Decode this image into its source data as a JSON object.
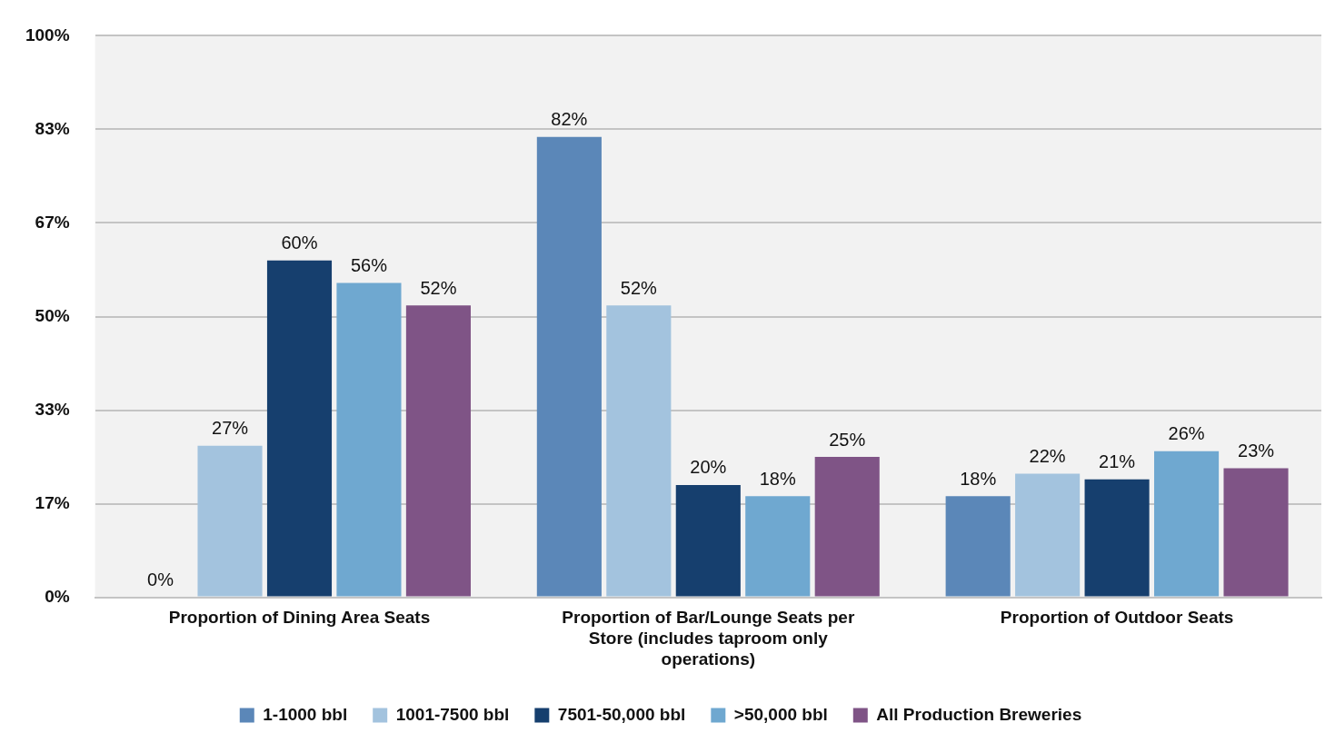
{
  "chart_data": {
    "type": "bar",
    "categories": [
      "Proportion of Dining Area Seats",
      "Proportion of Bar/Lounge Seats per Store (includes taproom only operations)",
      "Proportion of Outdoor Seats"
    ],
    "series": [
      {
        "name": "1-1000 bbl",
        "color": "#5b87b8",
        "values": [
          0,
          82,
          18
        ]
      },
      {
        "name": "1001-7500 bbl",
        "color": "#a3c3de",
        "values": [
          27,
          52,
          22
        ]
      },
      {
        "name": "7501-50,000 bbl",
        "color": "#163f6e",
        "values": [
          60,
          20,
          21
        ]
      },
      {
        "name": ">50,000 bbl",
        "color": "#6fa8d0",
        "values": [
          56,
          18,
          26
        ]
      },
      {
        "name": "All Production Breweries",
        "color": "#7f5486",
        "values": [
          52,
          25,
          23
        ]
      }
    ],
    "ylim": [
      0,
      100
    ],
    "yticks": [
      {
        "value": 0,
        "label": "0%"
      },
      {
        "value": 16.667,
        "label": "17%"
      },
      {
        "value": 33.333,
        "label": "33%"
      },
      {
        "value": 50,
        "label": "50%"
      },
      {
        "value": 66.667,
        "label": "67%"
      },
      {
        "value": 83.333,
        "label": "83%"
      },
      {
        "value": 100,
        "label": "100%"
      }
    ],
    "value_labels": [
      [
        "0%",
        "82%",
        "18%"
      ],
      [
        "27%",
        "52%",
        "22%"
      ],
      [
        "60%",
        "20%",
        "21%"
      ],
      [
        "56%",
        "18%",
        "26%"
      ],
      [
        "52%",
        "25%",
        "23%"
      ]
    ],
    "grid": "y",
    "legend": "bottom"
  }
}
